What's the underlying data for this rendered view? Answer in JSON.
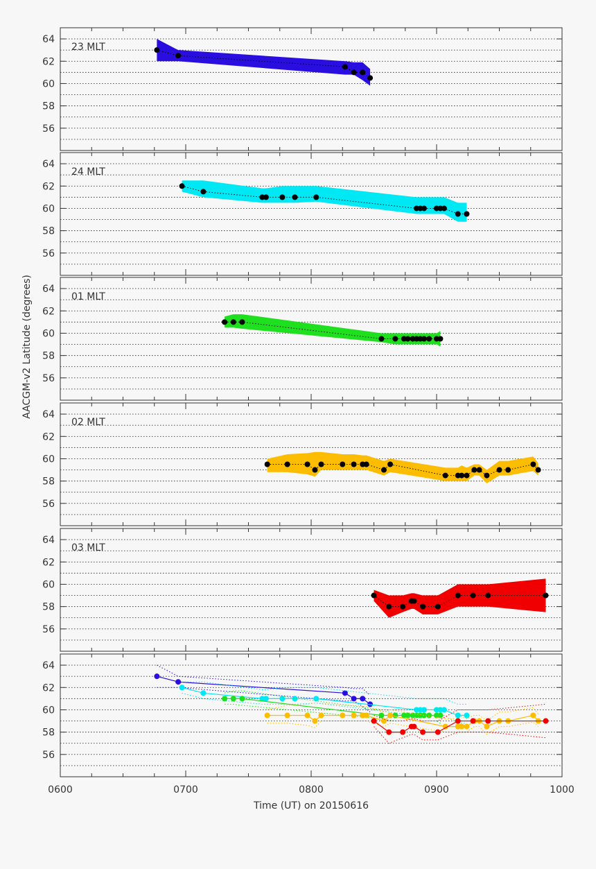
{
  "chart_data": {
    "type": "scatter",
    "shared_x_axis": {
      "label": "Time (UT) on 20150616",
      "tick_labels": [
        "0600",
        "0700",
        "0800",
        "0900",
        "1000"
      ],
      "tick_values": [
        600,
        700,
        800,
        900,
        1000
      ],
      "range": [
        600,
        1000
      ]
    },
    "shared_y_axis": {
      "label": "AACGM-v2 Latitude (degrees)",
      "tick_labels": [
        "56",
        "58",
        "60",
        "62",
        "64"
      ],
      "tick_values": [
        56,
        58,
        60,
        62,
        64
      ],
      "range": [
        54,
        65
      ]
    },
    "grid": "horizontal dotted, every 1 degree",
    "colors": {
      "23 MLT": "#2a0ee0",
      "24 MLT": "#00e8f4",
      "01 MLT": "#1ee01e",
      "02 MLT": "#fcbc00",
      "03 MLT": "#f00000",
      "points": "#000000"
    },
    "panels": [
      {
        "label": "23 MLT",
        "color": "#2a0ee0",
        "x": [
          677,
          694,
          827,
          834,
          841,
          847
        ],
        "y": [
          63.0,
          62.5,
          61.5,
          61.0,
          61.0,
          60.5
        ],
        "band_upper": [
          64.0,
          63.0,
          62.0,
          61.9,
          61.9,
          61.3
        ],
        "band_lower": [
          62.0,
          62.0,
          60.8,
          60.8,
          60.3,
          59.8
        ]
      },
      {
        "label": "24 MLT",
        "color": "#00e8f4",
        "x": [
          697,
          714,
          761,
          764,
          777,
          787,
          804,
          884,
          887,
          890,
          900,
          903,
          906,
          917,
          924
        ],
        "y": [
          62.0,
          61.5,
          61.0,
          61.0,
          61.0,
          61.0,
          61.0,
          60.0,
          60.0,
          60.0,
          60.0,
          60.0,
          60.0,
          59.5,
          59.5
        ],
        "band_upper": [
          62.5,
          62.5,
          61.8,
          61.8,
          62.0,
          62.0,
          62.0,
          61.0,
          61.0,
          61.0,
          61.0,
          61.0,
          61.0,
          60.5,
          60.5
        ],
        "band_lower": [
          61.5,
          61.0,
          60.5,
          60.5,
          60.5,
          60.5,
          60.6,
          59.5,
          59.5,
          59.5,
          59.5,
          59.5,
          59.5,
          58.8,
          58.8
        ]
      },
      {
        "label": "01 MLT",
        "color": "#1ee01e",
        "x": [
          731,
          738,
          745,
          856,
          867,
          874,
          877,
          881,
          884,
          887,
          890,
          894,
          900,
          903
        ],
        "y": [
          61.0,
          61.0,
          61.0,
          59.5,
          59.5,
          59.5,
          59.5,
          59.5,
          59.5,
          59.5,
          59.5,
          59.5,
          59.5,
          59.5
        ],
        "band_upper": [
          61.5,
          61.7,
          61.7,
          60.0,
          60.0,
          60.0,
          60.0,
          60.0,
          60.0,
          60.0,
          60.0,
          60.0,
          60.0,
          60.2
        ],
        "band_lower": [
          60.5,
          60.5,
          60.4,
          59.2,
          59.0,
          59.0,
          59.0,
          59.0,
          59.0,
          59.0,
          59.0,
          59.0,
          59.0,
          58.8
        ]
      },
      {
        "label": "02 MLT",
        "color": "#fcbc00",
        "x": [
          765,
          781,
          797,
          803,
          808,
          825,
          834,
          841,
          844,
          858,
          863,
          907,
          917,
          920,
          924,
          930,
          934,
          940,
          950,
          957,
          977,
          981
        ],
        "y": [
          59.5,
          59.5,
          59.5,
          59.0,
          59.5,
          59.5,
          59.5,
          59.5,
          59.5,
          59.0,
          59.5,
          58.5,
          58.5,
          58.5,
          58.5,
          59.0,
          59.0,
          58.5,
          59.0,
          59.0,
          59.5,
          59.0
        ],
        "band_upper": [
          60.0,
          60.4,
          60.5,
          60.6,
          60.6,
          60.4,
          60.4,
          60.3,
          60.3,
          59.8,
          60.0,
          59.2,
          59.2,
          59.4,
          59.2,
          59.5,
          59.5,
          59.0,
          59.8,
          59.8,
          60.2,
          59.6
        ],
        "band_lower": [
          58.8,
          58.8,
          58.6,
          58.4,
          59.0,
          59.0,
          59.0,
          59.0,
          59.0,
          58.5,
          58.8,
          58.0,
          58.0,
          58.0,
          58.0,
          58.5,
          58.5,
          57.8,
          58.5,
          58.5,
          58.9,
          58.5
        ]
      },
      {
        "label": "03 MLT",
        "color": "#f00000",
        "x": [
          850,
          862,
          873,
          880,
          882,
          889,
          901,
          917,
          929,
          941,
          987
        ],
        "y": [
          59.0,
          58.0,
          58.0,
          58.5,
          58.5,
          58.0,
          58.0,
          59.0,
          59.0,
          59.0,
          59.0
        ],
        "band_upper": [
          59.5,
          59.0,
          59.0,
          59.2,
          59.2,
          59.0,
          59.0,
          60.0,
          60.0,
          60.0,
          60.5
        ],
        "band_lower": [
          58.5,
          57.0,
          57.5,
          57.8,
          57.8,
          57.3,
          57.3,
          58.0,
          58.0,
          58.0,
          57.5
        ]
      }
    ]
  }
}
